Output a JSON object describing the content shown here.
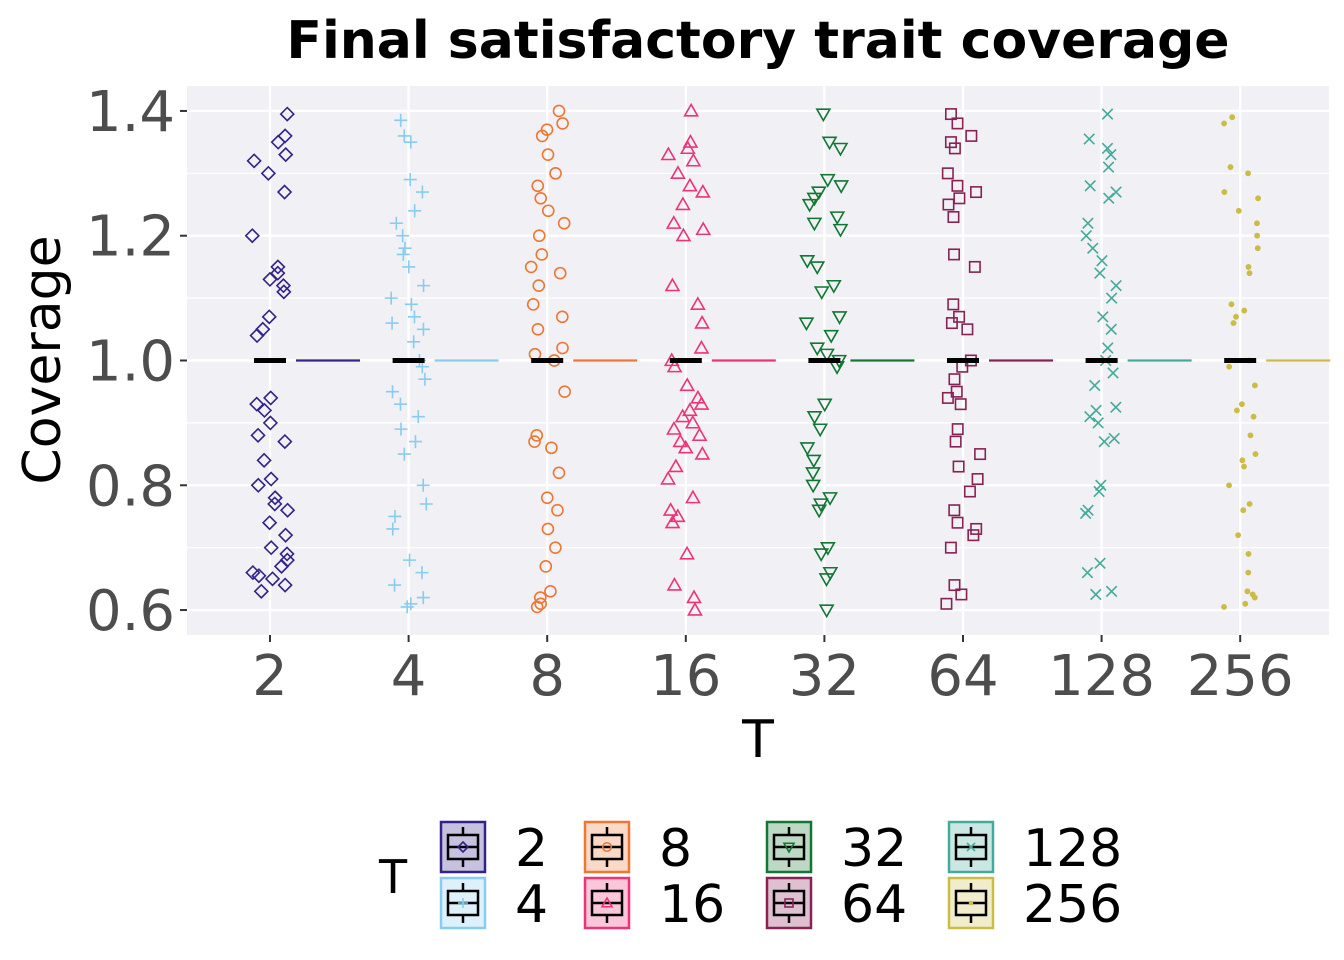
{
  "chart_data": {
    "type": "scatter",
    "title": "Final satisfactory trait coverage",
    "xlabel": "T",
    "ylabel": "Coverage",
    "categories": [
      "2",
      "4",
      "8",
      "16",
      "32",
      "64",
      "128",
      "256"
    ],
    "y_ticks": [
      "0.6",
      "0.8",
      "1.0",
      "1.2",
      "1.4"
    ],
    "ylim": [
      0.56,
      1.44
    ],
    "grid": true,
    "legend": {
      "title": "T",
      "placement": "bottom"
    },
    "median": 1.0,
    "series": [
      {
        "name": "2",
        "color": "#332288",
        "marker": "diamond",
        "values": [
          0.63,
          0.64,
          0.65,
          0.655,
          0.66,
          0.67,
          0.68,
          0.69,
          0.7,
          0.72,
          0.74,
          0.76,
          0.77,
          0.78,
          0.8,
          0.81,
          0.84,
          0.87,
          0.88,
          0.9,
          0.92,
          0.93,
          0.94,
          1.04,
          1.05,
          1.07,
          1.11,
          1.12,
          1.13,
          1.14,
          1.15,
          1.2,
          1.27,
          1.3,
          1.32,
          1.33,
          1.35,
          1.36,
          1.395
        ]
      },
      {
        "name": "4",
        "color": "#88ccee",
        "marker": "plus",
        "values": [
          0.605,
          0.61,
          0.62,
          0.64,
          0.66,
          0.68,
          0.73,
          0.75,
          0.77,
          0.8,
          0.85,
          0.87,
          0.89,
          0.91,
          0.93,
          0.95,
          0.97,
          0.99,
          1.0,
          1.03,
          1.05,
          1.06,
          1.07,
          1.09,
          1.1,
          1.12,
          1.15,
          1.17,
          1.18,
          1.2,
          1.22,
          1.24,
          1.27,
          1.29,
          1.35,
          1.36,
          1.385
        ]
      },
      {
        "name": "8",
        "color": "#ee7733",
        "marker": "circle",
        "values": [
          0.605,
          0.61,
          0.62,
          0.63,
          0.67,
          0.7,
          0.73,
          0.76,
          0.78,
          0.82,
          0.86,
          0.87,
          0.88,
          0.95,
          1.0,
          1.01,
          1.02,
          1.05,
          1.07,
          1.09,
          1.12,
          1.14,
          1.15,
          1.17,
          1.2,
          1.22,
          1.24,
          1.26,
          1.28,
          1.3,
          1.33,
          1.36,
          1.37,
          1.38,
          1.4
        ]
      },
      {
        "name": "16",
        "color": "#ee3377",
        "marker": "triangle",
        "values": [
          0.6,
          0.62,
          0.64,
          0.69,
          0.74,
          0.75,
          0.76,
          0.78,
          0.81,
          0.83,
          0.85,
          0.86,
          0.87,
          0.88,
          0.89,
          0.9,
          0.91,
          0.92,
          0.93,
          0.94,
          0.96,
          0.99,
          1.0,
          1.02,
          1.06,
          1.09,
          1.12,
          1.2,
          1.21,
          1.22,
          1.25,
          1.27,
          1.28,
          1.3,
          1.32,
          1.33,
          1.34,
          1.35,
          1.4
        ]
      },
      {
        "name": "32",
        "color": "#117733",
        "marker": "triangle-down",
        "values": [
          0.6,
          0.65,
          0.66,
          0.69,
          0.7,
          0.76,
          0.77,
          0.78,
          0.8,
          0.82,
          0.84,
          0.86,
          0.89,
          0.91,
          0.93,
          0.99,
          1.0,
          1.01,
          1.02,
          1.04,
          1.06,
          1.07,
          1.11,
          1.12,
          1.15,
          1.16,
          1.21,
          1.22,
          1.23,
          1.25,
          1.26,
          1.27,
          1.28,
          1.29,
          1.34,
          1.35,
          1.395
        ]
      },
      {
        "name": "64",
        "color": "#882255",
        "marker": "square",
        "values": [
          0.61,
          0.625,
          0.64,
          0.7,
          0.72,
          0.73,
          0.74,
          0.76,
          0.79,
          0.81,
          0.83,
          0.85,
          0.87,
          0.89,
          0.93,
          0.94,
          0.95,
          0.97,
          0.99,
          1.0,
          1.05,
          1.06,
          1.07,
          1.09,
          1.15,
          1.17,
          1.23,
          1.25,
          1.26,
          1.27,
          1.28,
          1.3,
          1.34,
          1.35,
          1.36,
          1.38,
          1.395
        ]
      },
      {
        "name": "128",
        "color": "#44aa99",
        "marker": "cross",
        "values": [
          0.625,
          0.63,
          0.66,
          0.675,
          0.755,
          0.76,
          0.79,
          0.8,
          0.87,
          0.875,
          0.9,
          0.91,
          0.92,
          0.925,
          0.96,
          0.98,
          1.0,
          1.02,
          1.05,
          1.07,
          1.1,
          1.12,
          1.14,
          1.16,
          1.18,
          1.2,
          1.22,
          1.26,
          1.27,
          1.28,
          1.31,
          1.33,
          1.34,
          1.355,
          1.395
        ]
      },
      {
        "name": "256",
        "color": "#ccbb44",
        "marker": "dot",
        "values": [
          0.605,
          0.61,
          0.62,
          0.625,
          0.63,
          0.66,
          0.69,
          0.72,
          0.76,
          0.77,
          0.8,
          0.83,
          0.84,
          0.85,
          0.88,
          0.91,
          0.92,
          0.93,
          0.96,
          0.99,
          1.0,
          1.06,
          1.07,
          1.08,
          1.09,
          1.14,
          1.15,
          1.18,
          1.2,
          1.22,
          1.24,
          1.26,
          1.27,
          1.3,
          1.31,
          1.38,
          1.39
        ]
      }
    ]
  }
}
